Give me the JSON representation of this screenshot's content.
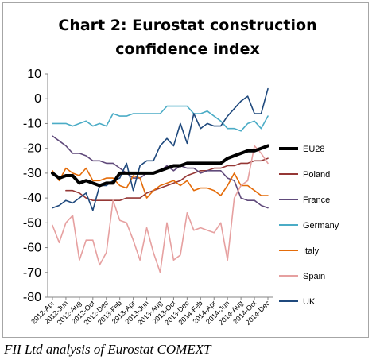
{
  "caption": "FII Ltd analysis of Eurostat COMEXT",
  "chart_data": {
    "type": "line",
    "title": "Chart 2: Eurostat construction confidence index",
    "title_lines": [
      "Chart 2: Eurostat construction",
      "confidence index"
    ],
    "xlabel": "",
    "ylabel": "",
    "ylim": [
      -80,
      10
    ],
    "yticks": [
      10,
      0,
      -10,
      -20,
      -30,
      -40,
      -50,
      -60,
      -70,
      -80
    ],
    "grid": "horizontal-none",
    "legend_position": "right",
    "x": [
      "2012-Apr",
      "2012-May",
      "2012-Jun",
      "2012-Jul",
      "2012-Aug",
      "2012-Sep",
      "2012-Oct",
      "2012-Nov",
      "2012-Dec",
      "2013-Jan",
      "2013-Feb",
      "2013-Mar",
      "2013-Apr",
      "2013-May",
      "2013-Jun",
      "2013-Jul",
      "2013-Aug",
      "2013-Sep",
      "2013-Oct",
      "2013-Nov",
      "2013-Dec",
      "2014-Jan",
      "2014-Feb",
      "2014-Mar",
      "2014-Apr",
      "2014-May",
      "2014-Jun",
      "2014-Jul",
      "2014-Aug",
      "2014-Sep",
      "2014-Oct",
      "2014-Nov",
      "2014-Dec"
    ],
    "x_tick_labels": [
      "2012-Apr",
      "2012-Jun",
      "2012-Aug",
      "2012-Oct",
      "2012-Dec",
      "2013-Feb",
      "2013-Apr",
      "2013-Jun",
      "2013-Aug",
      "2013-Oct",
      "2013-Dec",
      "2014-Feb",
      "2014-Apr",
      "2014-Jun",
      "2014-Aug",
      "2014-Oct",
      "2014-Dec"
    ],
    "series": [
      {
        "name": "EU28",
        "color": "#000000",
        "width": 4,
        "values": [
          -30,
          -32,
          -31,
          -31,
          -34,
          -33,
          -34,
          -35,
          -34,
          -34,
          -30,
          -30,
          -30,
          -30,
          -30,
          -30,
          -29,
          -28,
          -27,
          -27,
          -26,
          -26,
          -26,
          -26,
          -26,
          -26,
          -24,
          -23,
          -22,
          -21,
          -21,
          -20,
          -19
        ]
      },
      {
        "name": "Poland",
        "color": "#953735",
        "width": 1.6,
        "values": [
          null,
          null,
          -37,
          -37,
          -38,
          -40,
          -41,
          -41,
          -41,
          -41,
          -41,
          -40,
          -40,
          -40,
          -38,
          -37,
          -36,
          -35,
          -34,
          -33,
          -31,
          -30,
          -29,
          -29,
          -28,
          -28,
          -27,
          -27,
          -26,
          -26,
          -25,
          -25,
          -24
        ]
      },
      {
        "name": "France",
        "color": "#604a7b",
        "width": 1.6,
        "values": [
          -15,
          -17,
          -19,
          -22,
          -22,
          -23,
          -25,
          -25,
          -26,
          -26,
          -28,
          -30,
          -32,
          -32,
          -30,
          -30,
          -29,
          -27,
          -29,
          -27,
          -28,
          -28,
          -30,
          -29,
          -29,
          -29,
          -32,
          -33,
          -40,
          -41,
          -41,
          -43,
          -44
        ]
      },
      {
        "name": "Germany",
        "color": "#4bacc6",
        "width": 1.6,
        "values": [
          -10,
          -10,
          -10,
          -11,
          -10,
          -9,
          -11,
          -10,
          -11,
          -6,
          -7,
          -7,
          -6,
          -6,
          -6,
          -6,
          -6,
          -3,
          -3,
          -3,
          -3,
          -6,
          -6,
          -5,
          -7,
          -9,
          -12,
          -12,
          -13,
          -10,
          -9,
          -12,
          -7
        ]
      },
      {
        "name": "Italy",
        "color": "#e46c0a",
        "width": 1.6,
        "values": [
          -29,
          -33,
          -28,
          -30,
          -31,
          -28,
          -33,
          -33,
          -32,
          -32,
          -35,
          -36,
          -31,
          -32,
          -40,
          -37,
          -35,
          -34,
          -33,
          -35,
          -33,
          -37,
          -36,
          -36,
          -37,
          -39,
          -35,
          -30,
          -35,
          -35,
          -37,
          -39,
          -39
        ]
      },
      {
        "name": "Spain",
        "color": "#e6a0a0",
        "width": 1.6,
        "values": [
          -51,
          -58,
          -50,
          -47,
          -65,
          -57,
          -57,
          -67,
          -62,
          -41,
          -49,
          -50,
          -57,
          -65,
          -52,
          -62,
          -70,
          -50,
          -65,
          -63,
          -46,
          -53,
          -52,
          -53,
          -54,
          -50,
          -65,
          -40,
          -35,
          -33,
          -19,
          -22,
          -26
        ]
      },
      {
        "name": "UK",
        "color": "#1f497d",
        "width": 1.6,
        "values": [
          -44,
          -43,
          -41,
          -42,
          -40,
          -38,
          -45,
          -35,
          -35,
          -33,
          -32,
          -26,
          -37,
          -27,
          -25,
          -25,
          -19,
          -16,
          -19,
          -10,
          -18,
          -6,
          -12,
          -10,
          -11,
          -11,
          -7,
          -4,
          -1,
          1,
          -6,
          -6,
          4
        ]
      }
    ]
  }
}
